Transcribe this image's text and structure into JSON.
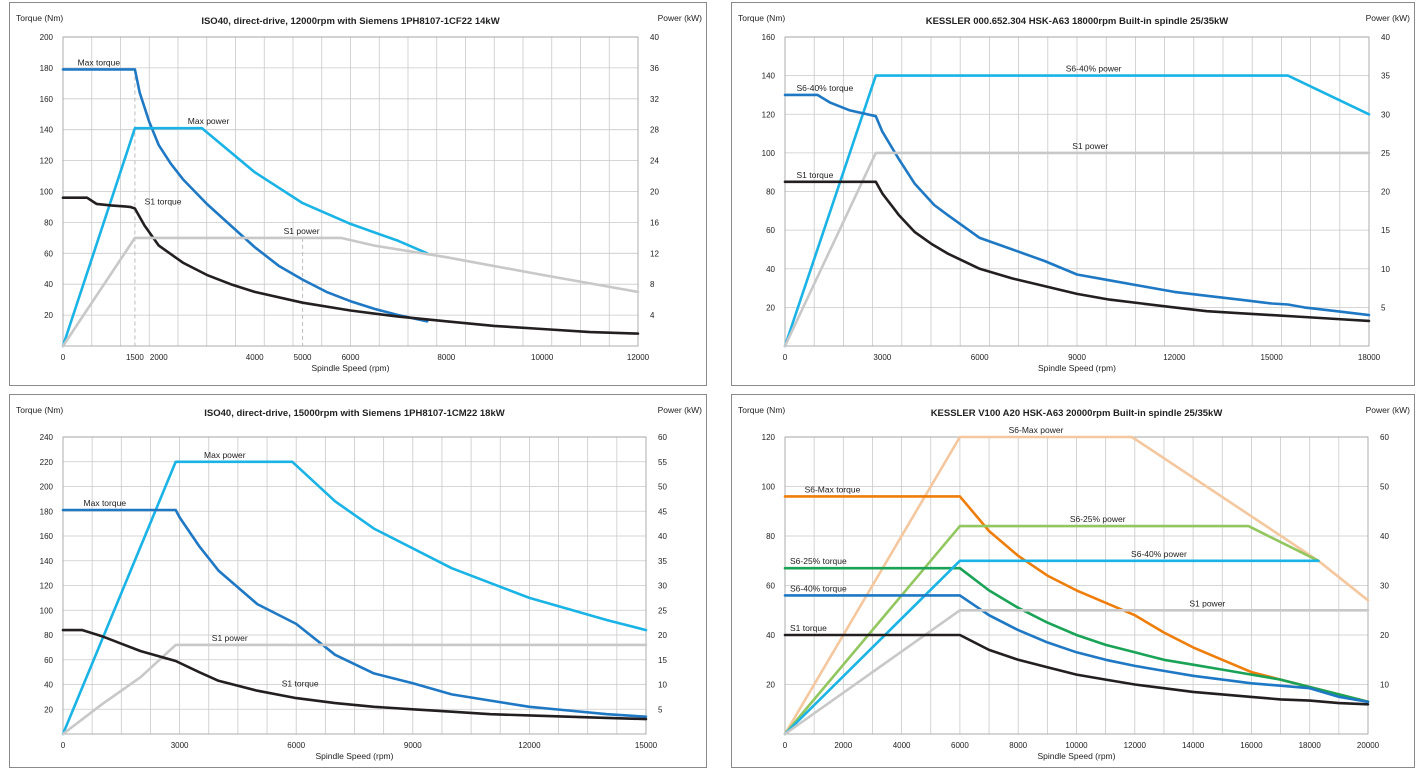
{
  "chart_data": [
    {
      "type": "line",
      "title": "ISO40, direct-drive,  12000rpm with Siemens 1PH8107-1CF22 14kW",
      "left_axis_label": "Torque (Nm)",
      "right_axis_label": "Power (kW)",
      "xlabel": "Spindle  Speed  (rpm)",
      "xlim": [
        0,
        12000
      ],
      "ylim_left": [
        0,
        200
      ],
      "ylim_right": [
        0,
        40
      ],
      "x_ticks": [
        "0",
        "1500",
        "2000",
        "4000",
        "5000",
        "6000",
        "8000",
        "10000",
        "12000"
      ],
      "y_ticks_left": [
        "20",
        "40",
        "60",
        "80",
        "100",
        "120",
        "140",
        "160",
        "180",
        "200"
      ],
      "y_ticks_right": [
        "4",
        "8",
        "12",
        "16",
        "20",
        "24",
        "28",
        "32",
        "36",
        "40"
      ],
      "grid": true,
      "series": [
        {
          "name": "Max  torque",
          "axis": "left",
          "color": "#1f78c4",
          "x": [
            0,
            1500,
            1600,
            1800,
            2000,
            2250,
            2500,
            3000,
            3500,
            4000,
            4500,
            5000,
            5500,
            6000,
            6500,
            7000,
            7600
          ],
          "y": [
            179,
            179,
            164,
            145,
            130,
            118,
            108,
            92,
            78,
            64,
            52,
            43,
            35,
            29,
            24,
            20,
            16
          ],
          "label_at": [
            200,
            179
          ]
        },
        {
          "name": "Max  power",
          "axis": "right",
          "color": "#1ab3e6",
          "x": [
            0,
            1500,
            2900,
            4000,
            5000,
            6000,
            7000,
            7600
          ],
          "y": [
            0,
            28.2,
            28.2,
            22.5,
            18.5,
            15.8,
            13.6,
            12
          ],
          "label_at": [
            2500,
            28.2
          ]
        },
        {
          "name": "S1  torque",
          "axis": "left",
          "color": "#231f20",
          "x": [
            0,
            500,
            700,
            1000,
            1400,
            1500,
            1700,
            2000,
            2500,
            3000,
            3500,
            4000,
            5000,
            6000,
            7000,
            8000,
            9000,
            10000,
            11000,
            12000
          ],
          "y": [
            96,
            96,
            92,
            91,
            90,
            89,
            78,
            65,
            54,
            46,
            40,
            35,
            28,
            23,
            19,
            16,
            13,
            11,
            9,
            8
          ],
          "label_at": [
            1600,
            89
          ]
        },
        {
          "name": "S1 power",
          "axis": "right",
          "color": "#c8c8c8",
          "x": [
            0,
            1500,
            5800,
            6500,
            8000,
            10000,
            12000
          ],
          "y": [
            0,
            14,
            14,
            13,
            11.5,
            9.2,
            7
          ],
          "label_at": [
            4500,
            14
          ]
        }
      ],
      "guides": [
        [
          1500,
          "left",
          179
        ],
        [
          5000,
          "right",
          14
        ]
      ]
    },
    {
      "type": "line",
      "title": "KESSLER  000.652.304  HSK-A63  18000rpm  Built-in  spindle  25/35kW",
      "left_axis_label": "Torque (Nm)",
      "right_axis_label": "Power (kW)",
      "xlabel": "Spindle  Speed  (rpm)",
      "xlim": [
        0,
        18000
      ],
      "ylim_left": [
        0,
        160
      ],
      "ylim_right": [
        0,
        40
      ],
      "x_ticks": [
        "0",
        "3000",
        "6000",
        "9000",
        "12000",
        "15000",
        "18000"
      ],
      "y_ticks_left": [
        "20",
        "40",
        "60",
        "80",
        "100",
        "120",
        "140",
        "160"
      ],
      "y_ticks_right": [
        "5",
        "10",
        "15",
        "20",
        "25",
        "30",
        "35",
        "40"
      ],
      "grid": true,
      "series": [
        {
          "name": "S6-40%  power",
          "axis": "right",
          "color": "#1ab3e6",
          "x": [
            0,
            2800,
            15500,
            18000
          ],
          "y": [
            0,
            35,
            35,
            30
          ],
          "label_at": [
            8500,
            35
          ]
        },
        {
          "name": "S6-40%  torque",
          "axis": "left",
          "color": "#1f78c4",
          "x": [
            0,
            1000,
            1400,
            2000,
            2800,
            3000,
            3500,
            4000,
            4600,
            5000,
            6000,
            7000,
            8000,
            9000,
            10000,
            11000,
            12000,
            13000,
            14000,
            15000,
            15500,
            16000,
            17000,
            18000
          ],
          "y": [
            130,
            130,
            126,
            122,
            119,
            111,
            97,
            84,
            73,
            68,
            56,
            50,
            44,
            37,
            34,
            31,
            28,
            26,
            24,
            22,
            21.5,
            20,
            18,
            16
          ],
          "label_at": [
            200,
            130
          ]
        },
        {
          "name": "S1 power",
          "axis": "right",
          "color": "#c8c8c8",
          "x": [
            0,
            2800,
            18000
          ],
          "y": [
            0,
            25,
            25
          ],
          "label_at": [
            8700,
            25
          ]
        },
        {
          "name": "S1  torque",
          "axis": "left",
          "color": "#231f20",
          "x": [
            0,
            2800,
            3000,
            3500,
            4000,
            4500,
            5000,
            6000,
            7000,
            8000,
            9000,
            10000,
            11000,
            12000,
            13000,
            14000,
            15000,
            16000,
            17000,
            18000
          ],
          "y": [
            85,
            85,
            79,
            68,
            59,
            53,
            48,
            40,
            35,
            31,
            27,
            24,
            22,
            20,
            18,
            17,
            16,
            15,
            14,
            13
          ],
          "label_at": [
            200,
            85
          ]
        }
      ]
    },
    {
      "type": "line",
      "title": "ISO40, direct-drive,  15000rpm with Siemens 1PH8107-1CM22 18kW",
      "left_axis_label": "Torque (Nm)",
      "right_axis_label": "Power (kW)",
      "xlabel": "Spindle  Speed  (rpm)",
      "xlim": [
        0,
        15000
      ],
      "ylim_left": [
        0,
        240
      ],
      "ylim_right": [
        0,
        60
      ],
      "x_ticks": [
        "0",
        "3000",
        "6000",
        "9000",
        "12000",
        "15000"
      ],
      "y_ticks_left": [
        "20",
        "40",
        "60",
        "80",
        "100",
        "120",
        "140",
        "160",
        "180",
        "200",
        "220",
        "240"
      ],
      "y_ticks_right": [
        "5",
        "10",
        "15",
        "20",
        "25",
        "30",
        "35",
        "40",
        "45",
        "50",
        "55",
        "60"
      ],
      "grid": true,
      "series": [
        {
          "name": "Max  power",
          "axis": "right",
          "color": "#1ab3e6",
          "x": [
            0,
            2900,
            5900,
            7000,
            8000,
            10000,
            12000,
            14000,
            15000
          ],
          "y": [
            0,
            55,
            55,
            47,
            41.5,
            33.5,
            27.5,
            23,
            21
          ],
          "label_at": [
            3500,
            55
          ]
        },
        {
          "name": "Max  torque",
          "axis": "left",
          "color": "#1f78c4",
          "x": [
            0,
            2900,
            3000,
            3500,
            4000,
            5000,
            6000,
            7000,
            8000,
            9000,
            10000,
            11000,
            12000,
            13000,
            14000,
            15000
          ],
          "y": [
            181,
            181,
            175,
            152,
            132,
            105,
            89,
            64,
            49,
            41,
            32,
            27,
            22,
            19,
            16,
            14
          ],
          "label_at": [
            400,
            181
          ]
        },
        {
          "name": "S1 power",
          "axis": "right",
          "color": "#c8c8c8",
          "x": [
            0,
            1000,
            2000,
            2900,
            15000
          ],
          "y": [
            0,
            6,
            11.5,
            18,
            18
          ],
          "label_at": [
            3700,
            18
          ]
        },
        {
          "name": "S1  torque",
          "axis": "left",
          "color": "#231f20",
          "x": [
            0,
            500,
            1000,
            1500,
            2000,
            2900,
            3500,
            4000,
            5000,
            6000,
            7000,
            8000,
            9000,
            10000,
            11000,
            12000,
            13000,
            14000,
            15000
          ],
          "y": [
            84,
            84,
            79,
            73,
            67,
            59,
            50,
            43,
            35,
            29,
            25,
            22,
            20,
            18,
            16,
            15,
            14,
            13,
            12
          ],
          "label_at": [
            5500,
            35
          ]
        }
      ]
    },
    {
      "type": "line",
      "title": "KESSLER  V100 A20  HSK-A63  20000rpm  Built-in  spindle  25/35kW",
      "left_axis_label": "Torque (Nm)",
      "right_axis_label": "Power (kW)",
      "xlabel": "Spindle  Speed  (rpm)",
      "xlim": [
        0,
        20000
      ],
      "ylim_left": [
        0,
        120
      ],
      "ylim_right": [
        0,
        60
      ],
      "x_ticks": [
        "0",
        "2000",
        "4000",
        "6000",
        "8000",
        "10000",
        "12000",
        "14000",
        "16000",
        "18000",
        "20000"
      ],
      "y_ticks_left": [
        "20",
        "40",
        "60",
        "80",
        "100",
        "120"
      ],
      "y_ticks_right": [
        "10",
        "20",
        "30",
        "40",
        "50",
        "60"
      ],
      "grid": true,
      "series": [
        {
          "name": "S6-Max  power",
          "axis": "right",
          "color": "#f5c79e",
          "x": [
            0,
            6000,
            11900,
            18300,
            20000
          ],
          "y": [
            0,
            60,
            60,
            35,
            27
          ],
          "label_at": [
            7500,
            60
          ]
        },
        {
          "name": "S6-Max  torque",
          "axis": "left",
          "color": "#ef7d0a",
          "x": [
            0,
            6000,
            7000,
            8000,
            9000,
            10000,
            11000,
            12000,
            13000,
            14000,
            15000,
            16000,
            17000,
            18000,
            19000,
            20000
          ],
          "y": [
            96,
            96,
            82,
            72,
            64,
            58,
            53,
            48,
            41,
            35,
            30,
            25,
            22,
            19,
            16,
            13
          ],
          "label_at": [
            500,
            96
          ]
        },
        {
          "name": "S6-25%  power",
          "axis": "right",
          "color": "#92c65f",
          "x": [
            0,
            6000,
            15900,
            18300
          ],
          "y": [
            0,
            42,
            42,
            35
          ],
          "label_at": [
            9600,
            42
          ]
        },
        {
          "name": "S6-25%  torque",
          "axis": "left",
          "color": "#1aa356",
          "x": [
            0,
            6000,
            7000,
            8000,
            9000,
            10000,
            11000,
            12000,
            13000,
            14000,
            15000,
            16000,
            17000,
            18000,
            19000,
            20000
          ],
          "y": [
            67,
            67,
            58,
            51,
            45,
            40,
            36,
            33,
            30,
            28,
            26,
            24,
            22,
            19,
            16,
            13
          ],
          "label_at": [
            0,
            67
          ]
        },
        {
          "name": "S6-40%  power",
          "axis": "right",
          "color": "#1ab3e6",
          "x": [
            0,
            6000,
            18300
          ],
          "y": [
            0,
            35,
            35
          ],
          "label_at": [
            11700,
            35
          ]
        },
        {
          "name": "S6-40%  torque",
          "axis": "left",
          "color": "#1f78c4",
          "x": [
            0,
            6000,
            7000,
            8000,
            9000,
            10000,
            11000,
            12000,
            13000,
            14000,
            15000,
            16000,
            17000,
            18000,
            19000,
            20000
          ],
          "y": [
            56,
            56,
            48,
            42,
            37,
            33,
            30,
            27.5,
            25.5,
            23.5,
            22,
            20.5,
            19.5,
            18.5,
            15,
            13
          ],
          "label_at": [
            0,
            56
          ]
        },
        {
          "name": "S1  power",
          "axis": "right",
          "color": "#c8c8c8",
          "x": [
            0,
            6000,
            20000
          ],
          "y": [
            0,
            25,
            25
          ],
          "label_at": [
            13700,
            25
          ]
        },
        {
          "name": "S1  torque",
          "axis": "left",
          "color": "#231f20",
          "x": [
            0,
            6000,
            7000,
            8000,
            9000,
            10000,
            11000,
            12000,
            13000,
            14000,
            15000,
            16000,
            17000,
            18000,
            19000,
            20000
          ],
          "y": [
            40,
            40,
            34,
            30,
            27,
            24,
            22,
            20,
            18.5,
            17,
            16,
            15,
            14,
            13.5,
            12.5,
            12
          ],
          "label_at": [
            0,
            40
          ]
        }
      ]
    }
  ]
}
